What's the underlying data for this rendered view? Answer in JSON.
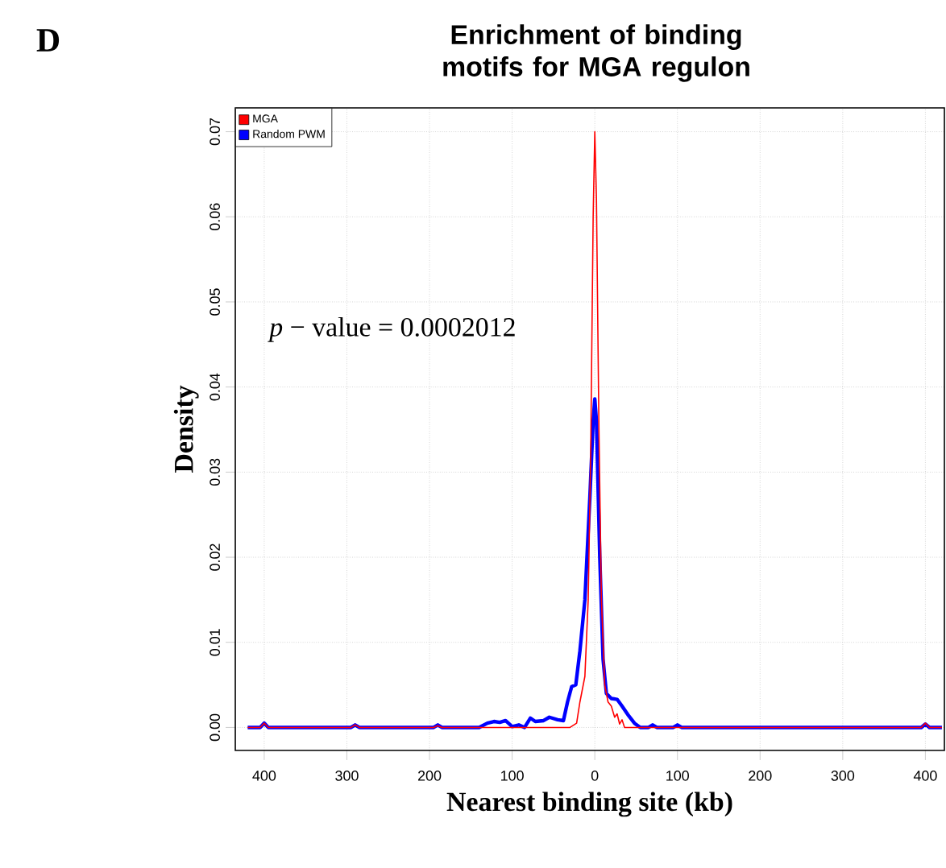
{
  "chart_data": {
    "type": "line",
    "title": "Enrichment of binding motifs for MGA regulon",
    "xlabel": "Nearest binding site (kb)",
    "ylabel": "Density",
    "annotations": [
      "D",
      "*p* − value = 0.0002012"
    ],
    "xlim": [
      -435,
      423
    ],
    "ylim": [
      -0.0027,
      0.0728
    ],
    "xticks": [
      {
        "value": -400,
        "label": "400"
      },
      {
        "value": -300,
        "label": "300"
      },
      {
        "value": -200,
        "label": "200"
      },
      {
        "value": -100,
        "label": "100"
      },
      0,
      {
        "value": 100,
        "label": "100"
      },
      {
        "value": 200,
        "label": "200"
      },
      {
        "value": 300,
        "label": "300"
      },
      {
        "value": 400,
        "label": "400"
      }
    ],
    "yticks": [
      {
        "value": 0,
        "label": "0.00"
      },
      {
        "value": 0.01,
        "label": "0.01"
      },
      {
        "value": 0.02,
        "label": "0.02"
      },
      {
        "value": 0.03,
        "label": "0.03"
      },
      {
        "value": 0.04,
        "label": "0.04"
      },
      {
        "value": 0.05,
        "label": "0.05"
      },
      {
        "value": 0.06,
        "label": "0.06"
      },
      {
        "value": 0.07,
        "label": "0.07"
      }
    ],
    "grid": true,
    "legend": "top left",
    "line_style": "solid",
    "series": [
      {
        "name": "MGA",
        "color": "#ff0000",
        "x": [
          -420,
          -405,
          -400,
          -395,
          -295,
          -290,
          -285,
          -195,
          -190,
          -185,
          -30,
          -22,
          -18,
          -12,
          -8,
          -5,
          -2,
          0,
          2,
          5,
          8,
          12,
          16,
          20,
          24,
          27,
          30,
          33,
          36,
          395,
          400,
          405,
          420
        ],
        "values": [
          0,
          0,
          0.0005,
          0,
          0,
          0.0003,
          0,
          0,
          0.0002,
          0,
          0,
          0.0005,
          0.003,
          0.006,
          0.015,
          0.032,
          0.06,
          0.07,
          0.062,
          0.035,
          0.015,
          0.005,
          0.003,
          0.0025,
          0.0012,
          0.0016,
          0.0004,
          0.0009,
          0,
          0,
          0.0005,
          0,
          0
        ]
      },
      {
        "name": "Random PWM",
        "color": "#0000ff",
        "x": [
          -420,
          -405,
          -400,
          -395,
          -295,
          -290,
          -285,
          -195,
          -190,
          -185,
          -140,
          -130,
          -122,
          -115,
          -108,
          -100,
          -92,
          -85,
          -78,
          -72,
          -62,
          -55,
          -45,
          -38,
          -33,
          -28,
          -23,
          -18,
          -12,
          -6,
          -2,
          0,
          2,
          6,
          10,
          14,
          20,
          27,
          33,
          40,
          48,
          55,
          65,
          70,
          75,
          95,
          100,
          105,
          395,
          400,
          405,
          420
        ],
        "values": [
          0,
          0,
          0.0005,
          0,
          0,
          0.0003,
          0,
          0,
          0.0003,
          0,
          0,
          0.0005,
          0.0007,
          0.0006,
          0.0008,
          0.0001,
          0.0003,
          0,
          0.0011,
          0.0007,
          0.0008,
          0.0012,
          0.0009,
          0.0008,
          0.003,
          0.0048,
          0.005,
          0.009,
          0.015,
          0.027,
          0.036,
          0.0386,
          0.036,
          0.02,
          0.008,
          0.004,
          0.0034,
          0.0033,
          0.0025,
          0.0015,
          0.0005,
          0,
          0,
          0.0003,
          0,
          0,
          0.0003,
          0,
          0,
          0.0004,
          0,
          0
        ]
      }
    ]
  }
}
